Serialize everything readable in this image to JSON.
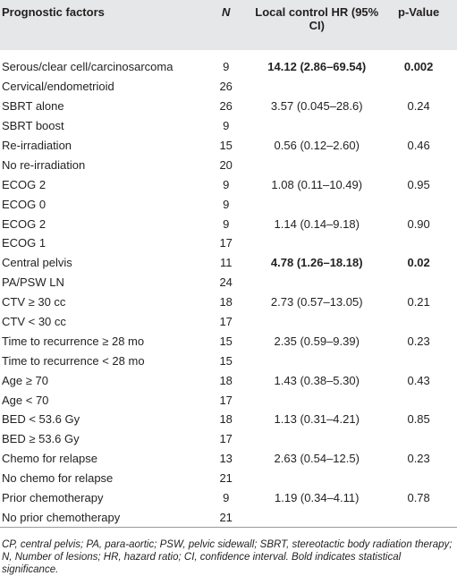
{
  "table": {
    "columns": [
      "Prognostic factors",
      "N",
      "Local control HR (95% CI)",
      "p-Value"
    ],
    "rows": [
      {
        "factor": "Serous/clear cell/carcinosarcoma",
        "n": 9,
        "hr": "14.12 (2.86–69.54)",
        "p": "0.002",
        "bold": true
      },
      {
        "factor": "Cervical/endometrioid",
        "n": 26
      },
      {
        "factor": "SBRT alone",
        "n": 26,
        "hr": "3.57 (0.045–28.6)",
        "p": "0.24"
      },
      {
        "factor": "SBRT boost",
        "n": 9
      },
      {
        "factor": "Re-irradiation",
        "n": 15,
        "hr": "0.56 (0.12–2.60)",
        "p": "0.46"
      },
      {
        "factor": "No re-irradiation",
        "n": 20
      },
      {
        "factor": "ECOG 2",
        "n": 9,
        "hr": "1.08 (0.11–10.49)",
        "p": "0.95"
      },
      {
        "factor": "ECOG 0",
        "n": 9
      },
      {
        "factor": "ECOG 2",
        "n": 9,
        "hr": "1.14 (0.14–9.18)",
        "p": "0.90"
      },
      {
        "factor": "ECOG 1",
        "n": 17
      },
      {
        "factor": "Central pelvis",
        "n": 11,
        "hr": "4.78 (1.26–18.18)",
        "p": "0.02",
        "bold": true
      },
      {
        "factor": "PA/PSW LN",
        "n": 24
      },
      {
        "factor": "CTV ≥ 30 cc",
        "n": 18,
        "hr": "2.73 (0.57–13.05)",
        "p": "0.21"
      },
      {
        "factor": "CTV < 30 cc",
        "n": 17
      },
      {
        "factor": "Time to recurrence ≥ 28 mo",
        "n": 15,
        "hr": "2.35 (0.59–9.39)",
        "p": "0.23"
      },
      {
        "factor": "Time to recurrence < 28 mo",
        "n": 15
      },
      {
        "factor": "Age ≥ 70",
        "n": 18,
        "hr": "1.43 (0.38–5.30)",
        "p": "0.43"
      },
      {
        "factor": "Age < 70",
        "n": 17
      },
      {
        "factor": "BED < 53.6 Gy",
        "n": 18,
        "hr": "1.13 (0.31–4.21)",
        "p": "0.85"
      },
      {
        "factor": "BED ≥ 53.6 Gy",
        "n": 17
      },
      {
        "factor": "Chemo for relapse",
        "n": 13,
        "hr": "2.63 (0.54–12.5)",
        "p": "0.23"
      },
      {
        "factor": "No chemo for relapse",
        "n": 21
      },
      {
        "factor": "Prior chemotherapy",
        "n": 9,
        "hr": "1.19 (0.34–4.11)",
        "p": "0.78"
      },
      {
        "factor": "No prior chemotherapy",
        "n": 21
      }
    ],
    "footnote": "CP, central pelvis; PA, para-aortic; PSW, pelvic sidewall; SBRT, stereotactic body radiation therapy; N, Number of lesions; HR, hazard ratio; CI, confidence interval. Bold indicates statistical significance."
  }
}
